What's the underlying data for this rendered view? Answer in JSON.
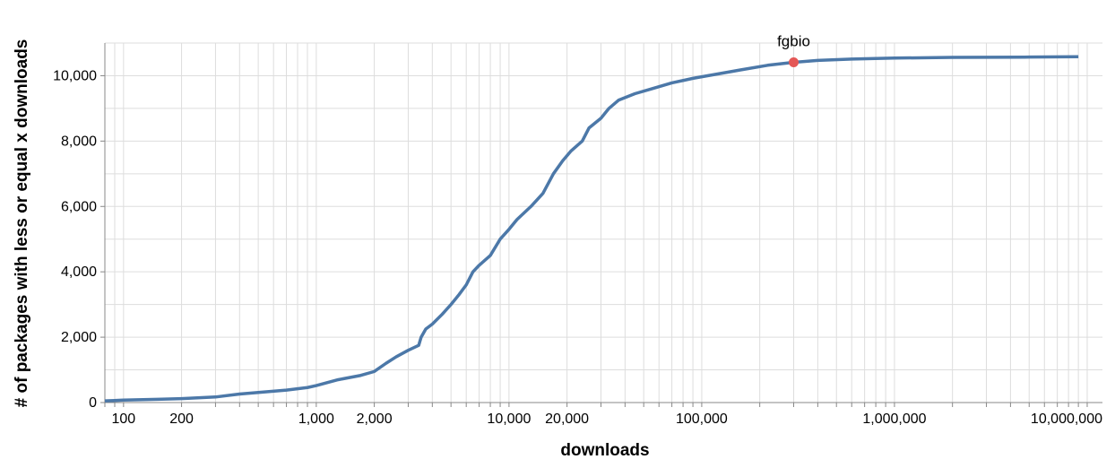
{
  "chart_data": {
    "type": "line",
    "xlabel": "downloads",
    "ylabel": "# of packages with less or equal x downloads",
    "x_scale": "log",
    "xlim": [
      80,
      12000000
    ],
    "ylim": [
      0,
      11000
    ],
    "grid": true,
    "colors": {
      "line": "#4c78a8",
      "highlight": "#e45756"
    },
    "x_ticks": [
      {
        "value": 100,
        "label": "100"
      },
      {
        "value": 200,
        "label": "200"
      },
      {
        "value": 1000,
        "label": "1,000"
      },
      {
        "value": 2000,
        "label": "2,000"
      },
      {
        "value": 10000,
        "label": "10,000"
      },
      {
        "value": 20000,
        "label": "20,000"
      },
      {
        "value": 100000,
        "label": "100,000"
      },
      {
        "value": 1000000,
        "label": "1,000,000"
      },
      {
        "value": 10000000,
        "label": "10,000,000"
      }
    ],
    "y_ticks": [
      {
        "value": 0,
        "label": "0"
      },
      {
        "value": 2000,
        "label": "2,000"
      },
      {
        "value": 4000,
        "label": "4,000"
      },
      {
        "value": 6000,
        "label": "6,000"
      },
      {
        "value": 8000,
        "label": "8,000"
      },
      {
        "value": 10000,
        "label": "10,000"
      }
    ],
    "series": [
      {
        "points": [
          [
            80,
            50
          ],
          [
            100,
            75
          ],
          [
            150,
            100
          ],
          [
            200,
            120
          ],
          [
            300,
            170
          ],
          [
            400,
            260
          ],
          [
            500,
            310
          ],
          [
            700,
            380
          ],
          [
            900,
            460
          ],
          [
            1000,
            520
          ],
          [
            1300,
            700
          ],
          [
            1700,
            830
          ],
          [
            2000,
            950
          ],
          [
            2300,
            1200
          ],
          [
            2600,
            1400
          ],
          [
            3000,
            1600
          ],
          [
            3400,
            1750
          ],
          [
            3500,
            2000
          ],
          [
            3700,
            2250
          ],
          [
            4000,
            2400
          ],
          [
            4500,
            2700
          ],
          [
            5000,
            3000
          ],
          [
            5500,
            3300
          ],
          [
            6000,
            3600
          ],
          [
            6500,
            4000
          ],
          [
            7000,
            4200
          ],
          [
            8000,
            4500
          ],
          [
            9000,
            5000
          ],
          [
            10000,
            5300
          ],
          [
            11000,
            5600
          ],
          [
            13000,
            6000
          ],
          [
            15000,
            6400
          ],
          [
            17000,
            7000
          ],
          [
            19000,
            7400
          ],
          [
            21000,
            7700
          ],
          [
            24000,
            8000
          ],
          [
            26000,
            8400
          ],
          [
            30000,
            8700
          ],
          [
            33000,
            9000
          ],
          [
            37000,
            9250
          ],
          [
            45000,
            9450
          ],
          [
            55000,
            9600
          ],
          [
            70000,
            9780
          ],
          [
            90000,
            9920
          ],
          [
            120000,
            10050
          ],
          [
            160000,
            10180
          ],
          [
            220000,
            10320
          ],
          [
            300000,
            10410
          ],
          [
            400000,
            10470
          ],
          [
            600000,
            10510
          ],
          [
            1000000,
            10540
          ],
          [
            2000000,
            10560
          ],
          [
            5000000,
            10570
          ],
          [
            9000000,
            10580
          ]
        ]
      }
    ],
    "highlight": {
      "label": "fgbio",
      "x": 300000,
      "y": 10410
    }
  }
}
